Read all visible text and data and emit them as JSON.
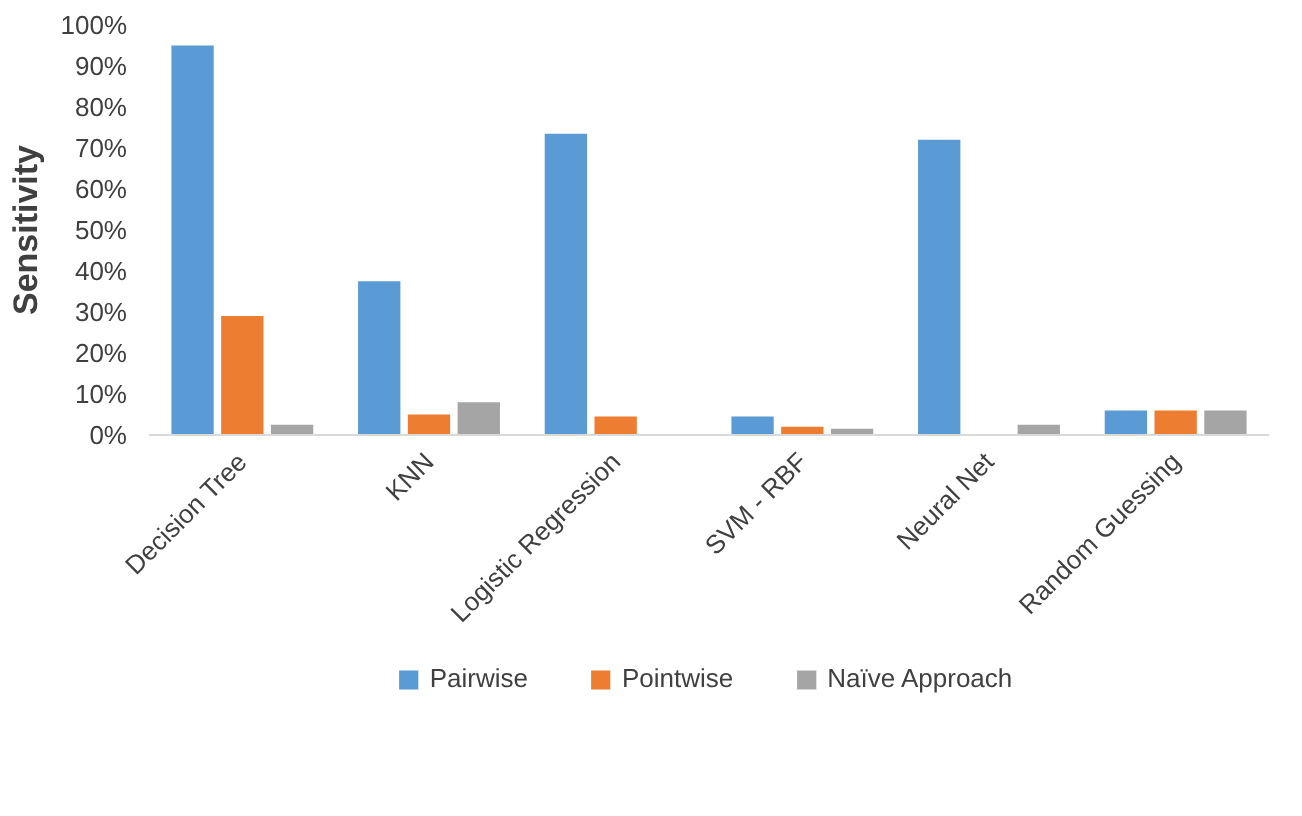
{
  "chart_data": {
    "type": "bar",
    "ylabel": "Sensitivity",
    "categories": [
      "Decision Tree",
      "KNN",
      "Logistic Regression",
      "SVM - RBF",
      "Neural Net",
      "Random Guessing"
    ],
    "series": [
      {
        "name": "Pairwise",
        "color": "#5b9bd5",
        "values": [
          95,
          37.5,
          73.5,
          4.5,
          72,
          6
        ]
      },
      {
        "name": "Pointwise",
        "color": "#ed7d31",
        "values": [
          29,
          5,
          4.5,
          2,
          0,
          6
        ]
      },
      {
        "name": "Naïve Approach",
        "color": "#a5a5a5",
        "values": [
          2.5,
          8,
          0,
          1.5,
          2.5,
          6
        ]
      }
    ],
    "ylim": [
      0,
      100
    ],
    "yticks": [
      {
        "value": 0,
        "label": "0%"
      },
      {
        "value": 10,
        "label": "10%"
      },
      {
        "value": 20,
        "label": "20%"
      },
      {
        "value": 30,
        "label": "30%"
      },
      {
        "value": 40,
        "label": "40%"
      },
      {
        "value": 50,
        "label": "50%"
      },
      {
        "value": 60,
        "label": "60%"
      },
      {
        "value": 70,
        "label": "70%"
      },
      {
        "value": 80,
        "label": "80%"
      },
      {
        "value": 90,
        "label": "90%"
      },
      {
        "value": 100,
        "label": "100%"
      }
    ],
    "grid": false,
    "legend": "bottom"
  }
}
